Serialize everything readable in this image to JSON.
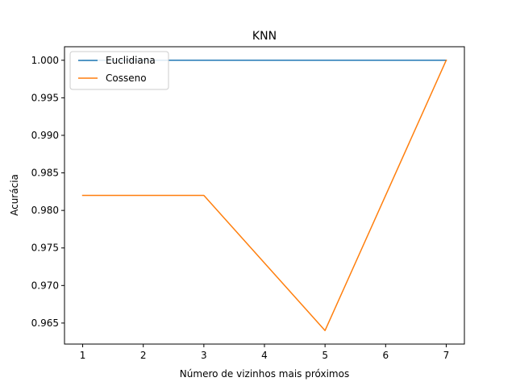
{
  "chart_data": {
    "type": "line",
    "title": "KNN",
    "xlabel": "Número de vizinhos mais próximos",
    "ylabel": "Acurácia",
    "xlim": [
      0.7,
      7.3
    ],
    "ylim": [
      0.9622,
      1.0018
    ],
    "xticks": [
      1,
      2,
      3,
      4,
      5,
      6,
      7
    ],
    "yticks": [
      0.965,
      0.97,
      0.975,
      0.98,
      0.985,
      0.99,
      0.995,
      1.0
    ],
    "ytick_labels": [
      "0.965",
      "0.970",
      "0.975",
      "0.980",
      "0.985",
      "0.990",
      "0.995",
      "1.000"
    ],
    "grid": false,
    "legend_position": "top-left",
    "series": [
      {
        "name": "Euclidiana",
        "color": "#1f77b4",
        "x": [
          1,
          3,
          5,
          7
        ],
        "y": [
          1.0,
          1.0,
          1.0,
          1.0
        ]
      },
      {
        "name": "Cosseno",
        "color": "#ff7f0e",
        "x": [
          1,
          3,
          5,
          7
        ],
        "y": [
          0.982,
          0.982,
          0.964,
          1.0
        ]
      }
    ]
  }
}
